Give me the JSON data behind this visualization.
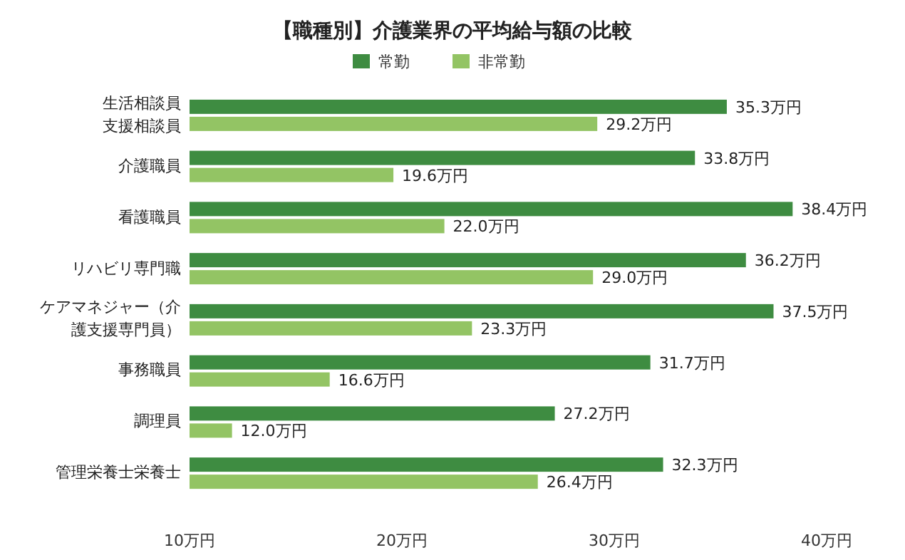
{
  "chart_data": {
    "type": "bar",
    "orientation": "horizontal",
    "title": "【職種別】介護業界の平均給与額の比較",
    "categories": [
      "生活相談員支援相談員",
      "介護職員",
      "看護職員",
      "リハビリ専門職",
      "ケアマネジャー（介護支援専門員）",
      "事務職員",
      "調理員",
      "管理栄養士栄養士"
    ],
    "series": [
      {
        "name": "常勤",
        "color": "#3e8c41",
        "values": [
          35.3,
          33.8,
          38.4,
          36.2,
          37.5,
          31.7,
          27.2,
          32.3
        ],
        "value_labels": [
          "35.3万円",
          "33.8万円",
          "38.4万円",
          "36.2万円",
          "37.5万円",
          "31.7万円",
          "27.2万円",
          "32.3万円"
        ]
      },
      {
        "name": "非常勤",
        "color": "#93c464",
        "values": [
          29.2,
          19.6,
          22.0,
          29.0,
          23.3,
          16.6,
          12.0,
          26.4
        ],
        "value_labels": [
          "29.2万円",
          "19.6万円",
          "22.0万円",
          "29.0万円",
          "23.3万円",
          "16.6万円",
          "12.0万円",
          "26.4万円"
        ]
      }
    ],
    "xlim": [
      10,
      40
    ],
    "xticks": [
      {
        "value": 10,
        "label": "10万円"
      },
      {
        "value": 20,
        "label": "20万円"
      },
      {
        "value": 30,
        "label": "30万円"
      },
      {
        "value": 40,
        "label": "40万円"
      }
    ],
    "legend": "top",
    "grid": false
  }
}
